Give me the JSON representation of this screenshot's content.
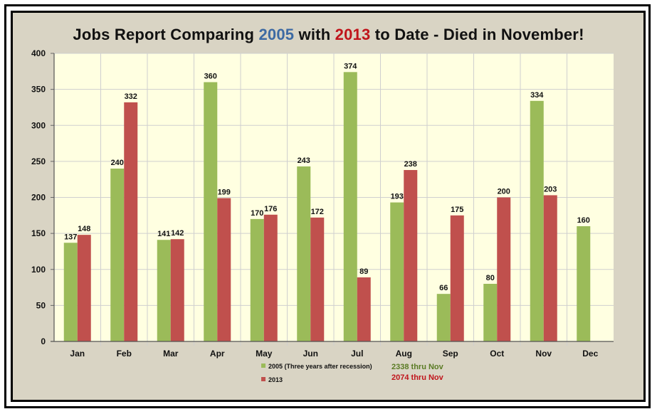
{
  "title": {
    "part1": "Jobs Report Comparing ",
    "year_a": "2005",
    "part2": " with ",
    "year_b": "2013",
    "part3": " to Date - Died in November!"
  },
  "colors": {
    "series_2005": "#9bbb59",
    "series_2013": "#c0504d",
    "plot_bg": "#ffffe1",
    "grid": "#cfcfcf"
  },
  "annotations": {
    "total_2005": "2338  thru Nov",
    "total_2013": "2074 thru Nov"
  },
  "chart_data": {
    "type": "bar",
    "title": "Jobs Report Comparing 2005 with 2013 to Date - Died in November!",
    "categories": [
      "Jan",
      "Feb",
      "Mar",
      "Apr",
      "May",
      "Jun",
      "Jul",
      "Aug",
      "Sep",
      "Oct",
      "Nov",
      "Dec"
    ],
    "series": [
      {
        "name": "2005 (Three years after recession)",
        "values": [
          137,
          240,
          141,
          360,
          170,
          243,
          374,
          193,
          66,
          80,
          334,
          160
        ]
      },
      {
        "name": "2013",
        "values": [
          148,
          332,
          142,
          199,
          176,
          172,
          89,
          238,
          175,
          200,
          203,
          null
        ]
      }
    ],
    "ylim": [
      0,
      400
    ],
    "yticks": [
      0,
      50,
      100,
      150,
      200,
      250,
      300,
      350,
      400
    ],
    "grid": true,
    "legend": "bottom"
  }
}
